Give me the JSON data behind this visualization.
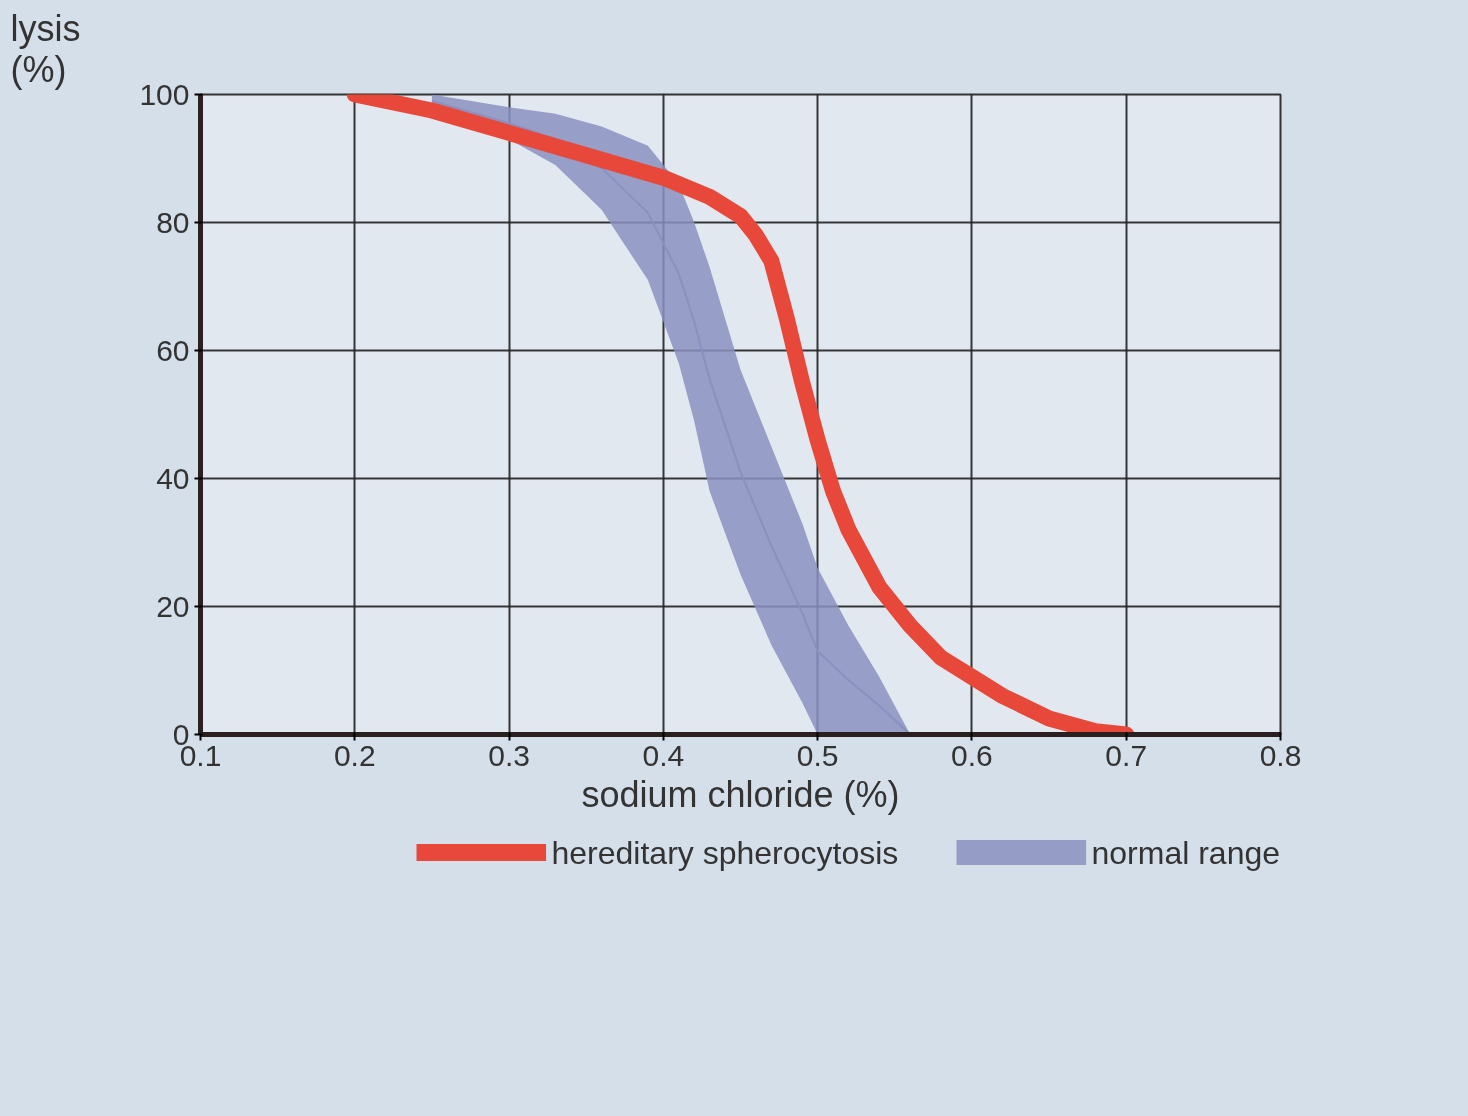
{
  "chart_data": {
    "type": "line",
    "xlabel": "sodium chloride (%)",
    "ylabel": "lysis (%)",
    "xlim": [
      0.1,
      0.8
    ],
    "ylim": [
      0,
      100
    ],
    "xticks": [
      0.1,
      0.2,
      0.3,
      0.4,
      0.5,
      0.6,
      0.7,
      0.8
    ],
    "yticks": [
      0,
      20,
      40,
      60,
      80,
      100
    ],
    "grid": true,
    "legend": "bottom",
    "series": [
      {
        "name": "hereditary spherocytosis",
        "color": "#e8483a",
        "x": [
          0.2,
          0.25,
          0.3,
          0.35,
          0.4,
          0.43,
          0.45,
          0.46,
          0.47,
          0.48,
          0.49,
          0.5,
          0.51,
          0.52,
          0.54,
          0.56,
          0.58,
          0.6,
          0.62,
          0.65,
          0.68,
          0.7
        ],
        "values": [
          100,
          97.5,
          94,
          90.5,
          87,
          84,
          81,
          78,
          74,
          65,
          55,
          46,
          38,
          32,
          23,
          17,
          12,
          9,
          6,
          2.5,
          0.5,
          0
        ]
      },
      {
        "name": "normal range",
        "color": "#8a90c0",
        "x": [
          0.25,
          0.3,
          0.33,
          0.36,
          0.39,
          0.41,
          0.42,
          0.43,
          0.45,
          0.47,
          0.49,
          0.5,
          0.52,
          0.54,
          0.56
        ],
        "values": [
          99,
          95.5,
          93,
          88.5,
          81.5,
          72,
          64.5,
          55.5,
          41,
          29.5,
          19,
          13,
          8.5,
          4.5,
          0
        ],
        "upper": [
          100,
          98,
          97,
          95,
          92,
          86,
          80,
          73,
          57,
          45,
          33,
          26,
          17,
          9,
          0
        ],
        "lower": [
          98,
          93,
          89,
          82,
          71,
          58,
          49,
          38,
          25,
          14,
          5,
          0,
          0,
          0,
          0
        ]
      }
    ]
  }
}
